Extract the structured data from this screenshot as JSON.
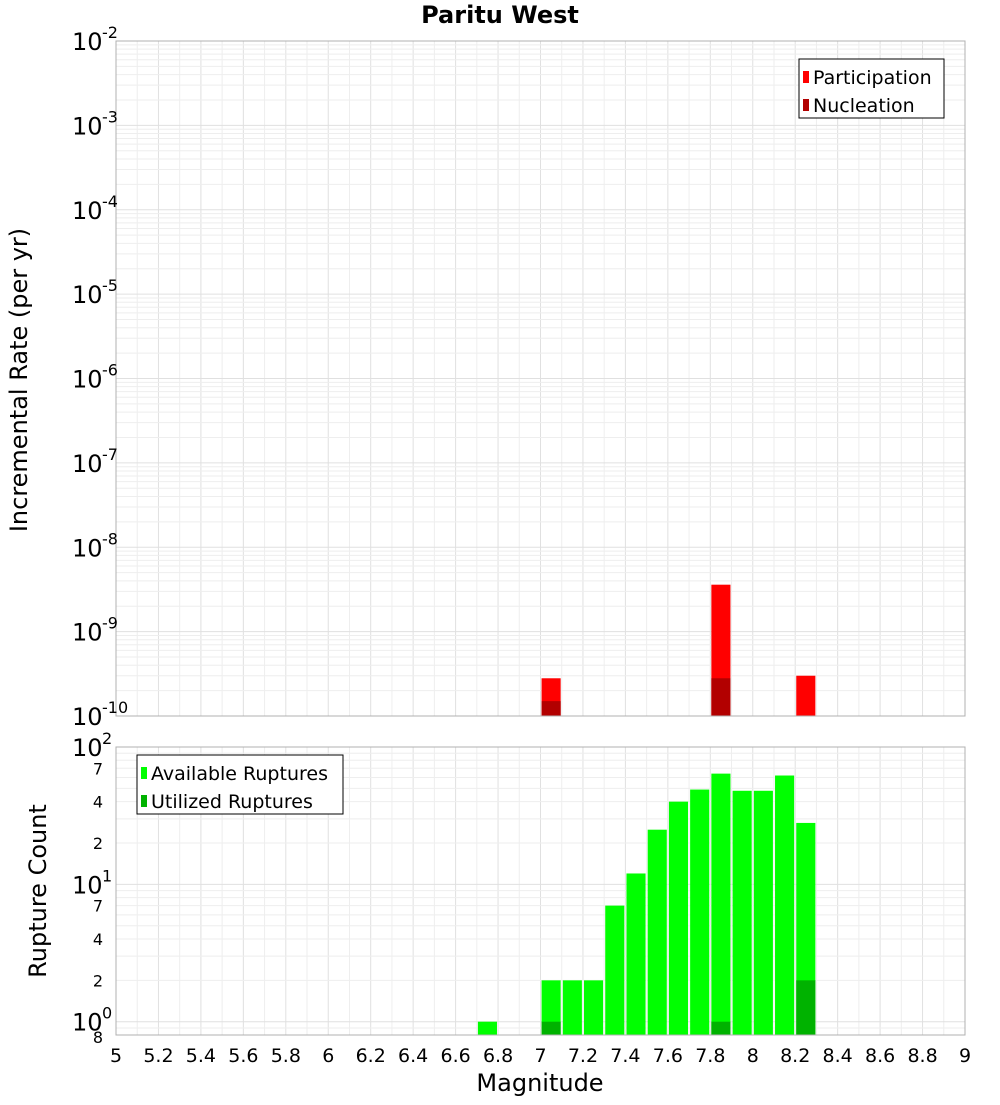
{
  "chart_data": [
    {
      "id": "rate",
      "type": "bar",
      "title": "Paritu West",
      "ylabel": "Incremental Rate (per yr)",
      "yscale": "log",
      "ylim": [
        1e-10,
        0.01
      ],
      "y_ticks": [
        {
          "base": "10",
          "exp": "-2",
          "value": 0.01
        },
        {
          "base": "10",
          "exp": "-3",
          "value": 0.001
        },
        {
          "base": "10",
          "exp": "-4",
          "value": 0.0001
        },
        {
          "base": "10",
          "exp": "-5",
          "value": 1e-05
        },
        {
          "base": "10",
          "exp": "-6",
          "value": 1e-06
        },
        {
          "base": "10",
          "exp": "-7",
          "value": 1e-07
        },
        {
          "base": "10",
          "exp": "-8",
          "value": 1e-08
        },
        {
          "base": "10",
          "exp": "-9",
          "value": 1e-09
        },
        {
          "base": "10",
          "exp": "-10",
          "value": 1e-10
        }
      ],
      "grid": true,
      "legend_position": "top-right",
      "series": [
        {
          "name": "Participation",
          "color": "#ff0000",
          "x": [
            7.05,
            7.85,
            8.25
          ],
          "values": [
            2.8e-10,
            3.6e-09,
            3e-10
          ]
        },
        {
          "name": "Nucleation",
          "color": "#b20000",
          "x": [
            7.05,
            7.85
          ],
          "values": [
            1.5e-10,
            2.8e-10
          ]
        }
      ]
    },
    {
      "id": "count",
      "type": "bar",
      "ylabel": "Rupture Count",
      "xlabel": "Magnitude",
      "yscale": "log",
      "ylim": [
        0.8,
        100
      ],
      "xlim": [
        5,
        9
      ],
      "x_ticks": [
        "5",
        "5.2",
        "5.4",
        "5.6",
        "5.8",
        "6",
        "6.2",
        "6.4",
        "6.6",
        "6.8",
        "7",
        "7.2",
        "7.4",
        "7.6",
        "7.8",
        "8",
        "8.2",
        "8.4",
        "8.6",
        "8.8",
        "9"
      ],
      "y_major_ticks": [
        {
          "base": "10",
          "exp": "2",
          "value": 100
        },
        {
          "base": "10",
          "exp": "1",
          "value": 10
        },
        {
          "base": "10",
          "exp": "0",
          "value": 1
        }
      ],
      "y_minor_ticks": [
        {
          "label": "7",
          "value": 70
        },
        {
          "label": "4",
          "value": 40
        },
        {
          "label": "2",
          "value": 20
        },
        {
          "label": "7",
          "value": 7
        },
        {
          "label": "4",
          "value": 4
        },
        {
          "label": "2",
          "value": 2
        },
        {
          "label": "8",
          "value": 0.8
        }
      ],
      "grid": true,
      "legend_position": "top-left",
      "series": [
        {
          "name": "Available Ruptures",
          "color": "#00ff00",
          "x": [
            6.75,
            7.05,
            7.15,
            7.25,
            7.35,
            7.45,
            7.55,
            7.65,
            7.75,
            7.85,
            7.95,
            8.05,
            8.15,
            8.25
          ],
          "values": [
            1,
            2,
            2,
            2,
            7,
            12,
            25,
            40,
            49,
            64,
            48,
            48,
            62,
            28
          ]
        },
        {
          "name": "Utilized Ruptures",
          "color": "#00b200",
          "x": [
            7.05,
            7.85,
            8.25
          ],
          "values": [
            1,
            1,
            2
          ]
        }
      ]
    }
  ]
}
